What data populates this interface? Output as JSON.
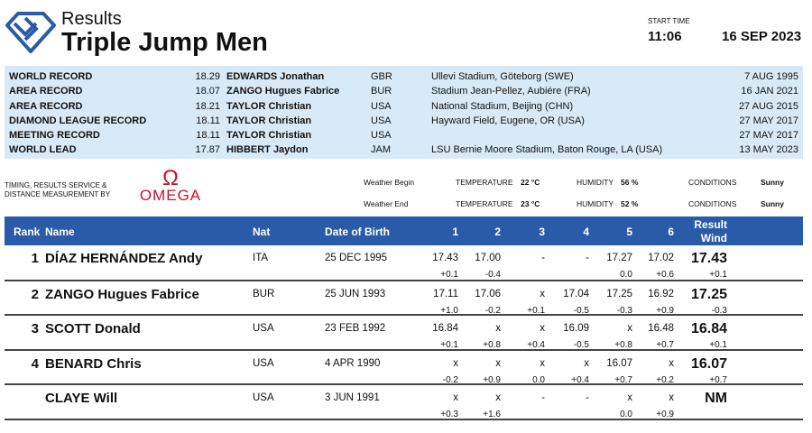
{
  "header": {
    "subtitle": "Results",
    "title": "Triple Jump Men",
    "start_time_label": "START TIME",
    "start_time": "11:06",
    "date": "16 SEP 2023"
  },
  "records": [
    {
      "type": "WORLD RECORD",
      "mark": "18.29",
      "athlete": "EDWARDS Jonathan",
      "nat": "GBR",
      "venue": "Ullevi Stadium, Göteborg (SWE)",
      "date": "7 AUG 1995"
    },
    {
      "type": "AREA RECORD",
      "mark": "18.07",
      "athlete": "ZANGO Hugues Fabrice",
      "nat": "BUR",
      "venue": "Stadium Jean-Pellez, Aubiére (FRA)",
      "date": "16 JAN 2021"
    },
    {
      "type": "AREA RECORD",
      "mark": "18.21",
      "athlete": "TAYLOR Christian",
      "nat": "USA",
      "venue": "National Stadium, Beijing (CHN)",
      "date": "27 AUG 2015"
    },
    {
      "type": "DIAMOND LEAGUE RECORD",
      "mark": "18.11",
      "athlete": "TAYLOR Christian",
      "nat": "USA",
      "venue": "Hayward Field, Eugene, OR (USA)",
      "date": "27 MAY 2017"
    },
    {
      "type": "MEETING RECORD",
      "mark": "18.11",
      "athlete": "TAYLOR Christian",
      "nat": "USA",
      "venue": "",
      "date": "27 MAY 2017"
    },
    {
      "type": "WORLD LEAD",
      "mark": "17.87",
      "athlete": "HIBBERT Jaydon",
      "nat": "JAM",
      "venue": "LSU Bernie Moore Stadium, Baton Rouge, LA (USA)",
      "date": "13 MAY 2023"
    }
  ],
  "timing": {
    "text": "TIMING, RESULTS SERVICE & DISTANCE MEASUREMENT BY",
    "brand": "OMEGA"
  },
  "weather": [
    {
      "label": "Weather Begin",
      "temp_label": "TEMPERATURE",
      "temp": "22 °C",
      "hum_label": "HUMIDITY",
      "hum": "56 %",
      "cond_label": "CONDITIONS",
      "cond": "Sunny"
    },
    {
      "label": "Weather End",
      "temp_label": "TEMPERATURE",
      "temp": "23 °C",
      "hum_label": "HUMIDITY",
      "hum": "52 %",
      "cond_label": "CONDITIONS",
      "cond": "Sunny"
    }
  ],
  "table": {
    "headers": {
      "rank": "Rank",
      "name": "Name",
      "nat": "Nat",
      "dob": "Date of Birth",
      "a1": "1",
      "a2": "2",
      "a3": "3",
      "a4": "4",
      "a5": "5",
      "a6": "6",
      "result": "Result",
      "wind": "Wind"
    },
    "rows": [
      {
        "rank": "1",
        "name": "DÍAZ HERNÁNDEZ Andy",
        "nat": "ITA",
        "dob": "25 DEC 1995",
        "marks": [
          "17.43",
          "17.00",
          "-",
          "-",
          "17.27",
          "17.02"
        ],
        "winds": [
          "+0.1",
          "-0.4",
          "",
          "",
          "0.0",
          "+0.6"
        ],
        "result": "17.43",
        "wind": "+0.1"
      },
      {
        "rank": "2",
        "name": "ZANGO Hugues Fabrice",
        "nat": "BUR",
        "dob": "25 JUN 1993",
        "marks": [
          "17.11",
          "17.06",
          "x",
          "17.04",
          "17.25",
          "16.92"
        ],
        "winds": [
          "+1.0",
          "-0.2",
          "+0.1",
          "-0.5",
          "-0.3",
          "+0.9"
        ],
        "result": "17.25",
        "wind": "-0.3"
      },
      {
        "rank": "3",
        "name": "SCOTT Donald",
        "nat": "USA",
        "dob": "23 FEB 1992",
        "marks": [
          "16.84",
          "x",
          "x",
          "16.09",
          "x",
          "16.48"
        ],
        "winds": [
          "+0.1",
          "+0.8",
          "+0.4",
          "-0.5",
          "+0.8",
          "+0.7"
        ],
        "result": "16.84",
        "wind": "+0.1"
      },
      {
        "rank": "4",
        "name": "BENARD Chris",
        "nat": "USA",
        "dob": "4 APR 1990",
        "marks": [
          "x",
          "x",
          "x",
          "x",
          "16.07",
          "x"
        ],
        "winds": [
          "-0.2",
          "+0.9",
          "0.0",
          "+0.4",
          "+0.7",
          "+0.2"
        ],
        "result": "16.07",
        "wind": "+0.7"
      },
      {
        "rank": "",
        "name": "CLAYE Will",
        "nat": "USA",
        "dob": "3 JUN 1991",
        "marks": [
          "x",
          "x",
          "-",
          "-",
          "x",
          "x"
        ],
        "winds": [
          "+0.3",
          "+1.6",
          "",
          "",
          "0.0",
          "+0.9"
        ],
        "result": "NM",
        "wind": ""
      }
    ]
  },
  "colors": {
    "accent": "#2a5ba8",
    "records_bg": "#d8eaf8",
    "omega": "#c8102e"
  }
}
